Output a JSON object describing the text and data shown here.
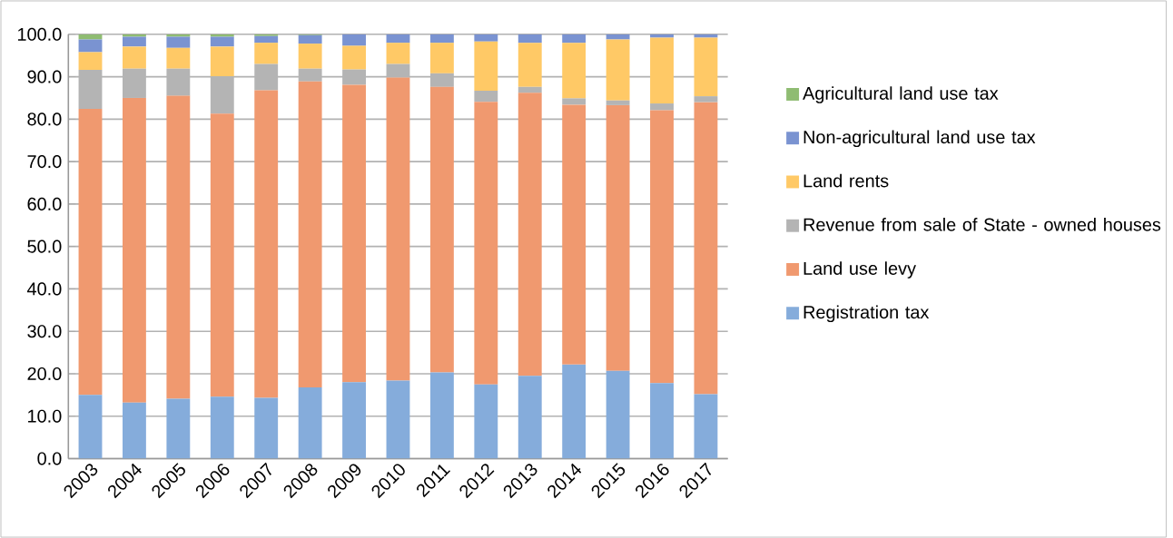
{
  "chart_data": {
    "type": "bar",
    "stacked": true,
    "grid": "y",
    "legend": "right",
    "categories": [
      "2003",
      "2004",
      "2005",
      "2006",
      "2007",
      "2008",
      "2009",
      "2010",
      "2011",
      "2012",
      "2013",
      "2014",
      "2015",
      "2016",
      "2017"
    ],
    "ylim": [
      0,
      100
    ],
    "yticks": [
      {
        "value": 0,
        "label": "0.0"
      },
      {
        "value": 10,
        "label": "10.0"
      },
      {
        "value": 20,
        "label": "20.0"
      },
      {
        "value": 30,
        "label": "30.0"
      },
      {
        "value": 40,
        "label": "40.0"
      },
      {
        "value": 50,
        "label": "50.0"
      },
      {
        "value": 60,
        "label": "60.0"
      },
      {
        "value": 70,
        "label": "70.0"
      },
      {
        "value": 80,
        "label": "80.0"
      },
      {
        "value": 90,
        "label": "90.0"
      },
      {
        "value": 100,
        "label": "100.0"
      }
    ],
    "series": [
      {
        "name": "Registration tax",
        "color": "#85ACDB",
        "values": [
          15.0,
          13.2,
          14.1,
          14.6,
          14.3,
          16.8,
          18.0,
          18.4,
          20.3,
          17.5,
          19.5,
          22.2,
          20.7,
          17.8,
          15.2
        ]
      },
      {
        "name": "Land use levy",
        "color": "#F0996F",
        "values": [
          67.4,
          71.8,
          71.4,
          66.7,
          72.5,
          72.1,
          70.1,
          71.4,
          67.3,
          66.6,
          66.7,
          61.2,
          62.6,
          64.3,
          68.8
        ]
      },
      {
        "name": "Revenue from sale of State - owned houses",
        "color": "#B4B4B4",
        "values": [
          9.2,
          6.9,
          6.4,
          8.8,
          6.2,
          3.0,
          3.6,
          3.2,
          3.2,
          2.6,
          1.4,
          1.5,
          1.1,
          1.6,
          1.4
        ]
      },
      {
        "name": "Land rents",
        "color": "#FFC966",
        "values": [
          4.2,
          5.2,
          4.9,
          7.0,
          5.0,
          5.9,
          5.6,
          5.0,
          7.2,
          11.6,
          10.4,
          13.1,
          14.4,
          15.5,
          13.8
        ]
      },
      {
        "name": "Non-agricultural land use tax",
        "color": "#7A93D1",
        "values": [
          3.0,
          2.3,
          2.6,
          2.3,
          1.6,
          2.0,
          2.7,
          2.0,
          2.0,
          1.7,
          2.0,
          2.0,
          1.2,
          0.8,
          0.8
        ]
      },
      {
        "name": "Agricultural land use tax",
        "color": "#8FBC72",
        "values": [
          1.2,
          0.6,
          0.6,
          0.6,
          0.4,
          0.2,
          0,
          0,
          0,
          0,
          0,
          0,
          0,
          0,
          0
        ]
      }
    ]
  }
}
